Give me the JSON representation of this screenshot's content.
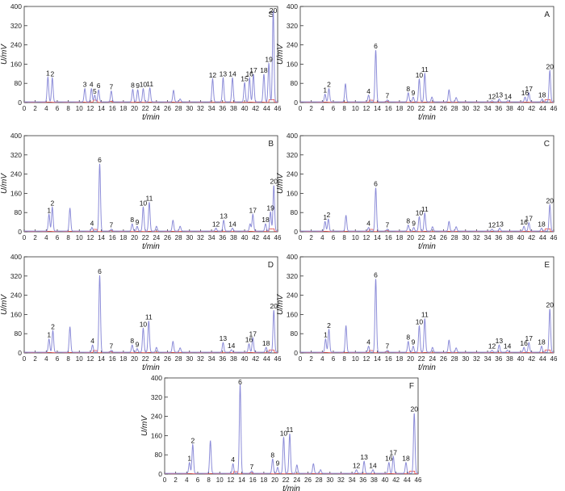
{
  "colors": {
    "sample": "#8c8cd8",
    "blank": "#e04848",
    "axis": "#333333"
  },
  "chart_data": [
    {
      "type": "line",
      "title": "",
      "panel_label": "S",
      "xlabel": "t/min",
      "ylabel": "U/mV",
      "xlim": [
        0,
        46
      ],
      "ylim": [
        0,
        400
      ],
      "xticks": [
        0,
        2,
        4,
        6,
        8,
        10,
        12,
        14,
        16,
        18,
        20,
        22,
        24,
        26,
        28,
        30,
        32,
        34,
        36,
        38,
        40,
        42,
        44,
        46
      ],
      "yticks": [
        0,
        80,
        160,
        240,
        320,
        400
      ],
      "peaks": [
        {
          "label": "1",
          "t": 4.3,
          "height": 103
        },
        {
          "label": "2",
          "t": 5.1,
          "height": 100
        },
        {
          "label": "3",
          "t": 11.0,
          "height": 55
        },
        {
          "label": "4",
          "t": 12.2,
          "height": 55
        },
        {
          "label": "5",
          "t": 12.8,
          "height": 28
        },
        {
          "label": "6",
          "t": 13.5,
          "height": 50
        },
        {
          "label": "7",
          "t": 15.8,
          "height": 45
        },
        {
          "label": "8",
          "t": 19.7,
          "height": 52
        },
        {
          "label": "9",
          "t": 20.6,
          "height": 50
        },
        {
          "label": "10",
          "t": 21.6,
          "height": 55
        },
        {
          "label": "11",
          "t": 22.8,
          "height": 58
        },
        {
          "label": "12",
          "t": 34.2,
          "height": 95
        },
        {
          "label": "13",
          "t": 36.1,
          "height": 100
        },
        {
          "label": "14",
          "t": 37.8,
          "height": 100
        },
        {
          "label": "15",
          "t": 40.0,
          "height": 80
        },
        {
          "label": "16",
          "t": 40.9,
          "height": 100
        },
        {
          "label": "17",
          "t": 41.6,
          "height": 115
        },
        {
          "label": "18",
          "t": 43.5,
          "height": 115
        },
        {
          "label": "19",
          "t": 44.4,
          "height": 160
        },
        {
          "label": "20",
          "t": 45.2,
          "height": 380
        }
      ],
      "unlabeled_peaks": [
        {
          "t": 27.1,
          "height": 48
        },
        {
          "t": 28.3,
          "height": 12
        }
      ]
    },
    {
      "type": "line",
      "title": "",
      "panel_label": "A",
      "xlabel": "t/min",
      "ylabel": "U/mV",
      "xlim": [
        0,
        46
      ],
      "ylim": [
        0,
        400
      ],
      "xticks": [
        0,
        2,
        4,
        6,
        8,
        10,
        12,
        14,
        16,
        18,
        20,
        22,
        24,
        26,
        28,
        30,
        32,
        34,
        36,
        38,
        40,
        42,
        44,
        46
      ],
      "yticks": [
        0,
        80,
        160,
        240,
        320,
        400
      ],
      "peaks": [
        {
          "label": "1",
          "t": 4.5,
          "height": 32
        },
        {
          "label": "2",
          "t": 5.2,
          "height": 55
        },
        {
          "label": "4",
          "t": 12.4,
          "height": 28
        },
        {
          "label": "6",
          "t": 13.7,
          "height": 215
        },
        {
          "label": "7",
          "t": 15.8,
          "height": 8
        },
        {
          "label": "8",
          "t": 19.6,
          "height": 38
        },
        {
          "label": "9",
          "t": 20.5,
          "height": 20
        },
        {
          "label": "10",
          "t": 21.6,
          "height": 95
        },
        {
          "label": "11",
          "t": 22.6,
          "height": 118
        },
        {
          "label": "12",
          "t": 34.8,
          "height": 5
        },
        {
          "label": "13",
          "t": 36.1,
          "height": 12
        },
        {
          "label": "14",
          "t": 37.7,
          "height": 5
        },
        {
          "label": "16",
          "t": 40.8,
          "height": 20
        },
        {
          "label": "17",
          "t": 41.5,
          "height": 38
        },
        {
          "label": "18",
          "t": 43.9,
          "height": 12
        },
        {
          "label": "20",
          "t": 45.3,
          "height": 130
        }
      ],
      "unlabeled_peaks": [
        {
          "t": 8.2,
          "height": 75
        },
        {
          "t": 23.9,
          "height": 20
        },
        {
          "t": 27.0,
          "height": 50
        },
        {
          "t": 28.3,
          "height": 18
        }
      ]
    },
    {
      "type": "line",
      "title": "",
      "panel_label": "B",
      "xlabel": "t/min",
      "ylabel": "U/mV",
      "xlim": [
        0,
        46
      ],
      "ylim": [
        0,
        400
      ],
      "xticks": [
        0,
        2,
        4,
        6,
        8,
        10,
        12,
        14,
        16,
        18,
        20,
        22,
        24,
        26,
        28,
        30,
        32,
        34,
        36,
        38,
        40,
        42,
        44,
        46
      ],
      "yticks": [
        0,
        80,
        160,
        240,
        320,
        400
      ],
      "peaks": [
        {
          "label": "1",
          "t": 4.5,
          "height": 70
        },
        {
          "label": "2",
          "t": 5.1,
          "height": 100
        },
        {
          "label": "4",
          "t": 12.3,
          "height": 15
        },
        {
          "label": "6",
          "t": 13.7,
          "height": 280
        },
        {
          "label": "7",
          "t": 15.8,
          "height": 8
        },
        {
          "label": "8",
          "t": 19.6,
          "height": 30
        },
        {
          "label": "9",
          "t": 20.5,
          "height": 20
        },
        {
          "label": "10",
          "t": 21.6,
          "height": 100
        },
        {
          "label": "11",
          "t": 22.7,
          "height": 120
        },
        {
          "label": "12",
          "t": 34.8,
          "height": 12
        },
        {
          "label": "13",
          "t": 36.2,
          "height": 45
        },
        {
          "label": "14",
          "t": 37.8,
          "height": 12
        },
        {
          "label": "17",
          "t": 41.5,
          "height": 70
        },
        {
          "label": "18",
          "t": 43.8,
          "height": 30
        },
        {
          "label": "19",
          "t": 44.7,
          "height": 80
        },
        {
          "label": "20",
          "t": 45.3,
          "height": 190
        }
      ],
      "unlabeled_peaks": [
        {
          "t": 8.3,
          "height": 95
        },
        {
          "t": 24.0,
          "height": 20
        },
        {
          "t": 27.0,
          "height": 45
        },
        {
          "t": 28.3,
          "height": 20
        },
        {
          "t": 41.0,
          "height": 30
        }
      ]
    },
    {
      "type": "line",
      "title": "",
      "panel_label": "C",
      "xlabel": "t/min",
      "ylabel": "U/mV",
      "xlim": [
        0,
        46
      ],
      "ylim": [
        0,
        400
      ],
      "xticks": [
        0,
        2,
        4,
        6,
        8,
        10,
        12,
        14,
        16,
        18,
        20,
        22,
        24,
        26,
        28,
        30,
        32,
        34,
        36,
        38,
        40,
        42,
        44,
        46
      ],
      "yticks": [
        0,
        80,
        160,
        240,
        320,
        400
      ],
      "peaks": [
        {
          "label": "1",
          "t": 4.5,
          "height": 40
        },
        {
          "label": "2",
          "t": 5.1,
          "height": 50
        },
        {
          "label": "4",
          "t": 12.4,
          "height": 15
        },
        {
          "label": "6",
          "t": 13.7,
          "height": 180
        },
        {
          "label": "7",
          "t": 15.8,
          "height": 8
        },
        {
          "label": "8",
          "t": 19.6,
          "height": 25
        },
        {
          "label": "9",
          "t": 20.6,
          "height": 15
        },
        {
          "label": "10",
          "t": 21.6,
          "height": 60
        },
        {
          "label": "11",
          "t": 22.6,
          "height": 75
        },
        {
          "label": "12",
          "t": 34.8,
          "height": 8
        },
        {
          "label": "13",
          "t": 36.2,
          "height": 12
        },
        {
          "label": "16",
          "t": 40.6,
          "height": 20
        },
        {
          "label": "17",
          "t": 41.5,
          "height": 35
        },
        {
          "label": "18",
          "t": 43.8,
          "height": 12
        },
        {
          "label": "20",
          "t": 45.3,
          "height": 110
        }
      ],
      "unlabeled_peaks": [
        {
          "t": 8.3,
          "height": 65
        },
        {
          "t": 24.0,
          "height": 18
        },
        {
          "t": 27.0,
          "height": 40
        },
        {
          "t": 28.3,
          "height": 18
        }
      ]
    },
    {
      "type": "line",
      "title": "",
      "panel_label": "D",
      "xlabel": "t/min",
      "ylabel": "U/mV",
      "xlim": [
        0,
        46
      ],
      "ylim": [
        0,
        400
      ],
      "xticks": [
        0,
        2,
        4,
        6,
        8,
        10,
        12,
        14,
        16,
        18,
        20,
        22,
        24,
        26,
        28,
        30,
        32,
        34,
        36,
        38,
        40,
        42,
        44,
        46
      ],
      "yticks": [
        0,
        80,
        160,
        240,
        320,
        400
      ],
      "peaks": [
        {
          "label": "1",
          "t": 4.5,
          "height": 55
        },
        {
          "label": "2",
          "t": 5.2,
          "height": 90
        },
        {
          "label": "4",
          "t": 12.4,
          "height": 30
        },
        {
          "label": "6",
          "t": 13.7,
          "height": 320
        },
        {
          "label": "7",
          "t": 15.8,
          "height": 8
        },
        {
          "label": "8",
          "t": 19.6,
          "height": 30
        },
        {
          "label": "9",
          "t": 20.5,
          "height": 15
        },
        {
          "label": "10",
          "t": 21.6,
          "height": 100
        },
        {
          "label": "11",
          "t": 22.6,
          "height": 130
        },
        {
          "label": "13",
          "t": 36.1,
          "height": 40
        },
        {
          "label": "14",
          "t": 37.6,
          "height": 10
        },
        {
          "label": "16",
          "t": 40.8,
          "height": 35
        },
        {
          "label": "17",
          "t": 41.5,
          "height": 60
        },
        {
          "label": "18",
          "t": 43.9,
          "height": 20
        },
        {
          "label": "20",
          "t": 45.3,
          "height": 175
        }
      ],
      "unlabeled_peaks": [
        {
          "t": 8.3,
          "height": 105
        },
        {
          "t": 24.0,
          "height": 20
        },
        {
          "t": 27.0,
          "height": 45
        },
        {
          "t": 28.3,
          "height": 18
        }
      ]
    },
    {
      "type": "line",
      "title": "",
      "panel_label": "E",
      "xlabel": "t/min",
      "ylabel": "U/mV",
      "xlim": [
        0,
        46
      ],
      "ylim": [
        0,
        400
      ],
      "xticks": [
        0,
        2,
        4,
        6,
        8,
        10,
        12,
        14,
        16,
        18,
        20,
        22,
        24,
        26,
        28,
        30,
        32,
        34,
        36,
        38,
        40,
        42,
        44,
        46
      ],
      "yticks": [
        0,
        80,
        160,
        240,
        320,
        400
      ],
      "peaks": [
        {
          "label": "1",
          "t": 4.6,
          "height": 55
        },
        {
          "label": "2",
          "t": 5.2,
          "height": 95
        },
        {
          "label": "4",
          "t": 12.4,
          "height": 25
        },
        {
          "label": "6",
          "t": 13.7,
          "height": 305
        },
        {
          "label": "7",
          "t": 15.8,
          "height": 8
        },
        {
          "label": "8",
          "t": 19.6,
          "height": 45
        },
        {
          "label": "9",
          "t": 20.5,
          "height": 25
        },
        {
          "label": "10",
          "t": 21.6,
          "height": 110
        },
        {
          "label": "11",
          "t": 22.6,
          "height": 140
        },
        {
          "label": "12",
          "t": 34.8,
          "height": 8
        },
        {
          "label": "13",
          "t": 36.1,
          "height": 30
        },
        {
          "label": "14",
          "t": 37.6,
          "height": 8
        },
        {
          "label": "16",
          "t": 40.6,
          "height": 20
        },
        {
          "label": "17",
          "t": 41.5,
          "height": 40
        },
        {
          "label": "18",
          "t": 43.8,
          "height": 25
        },
        {
          "label": "20",
          "t": 45.3,
          "height": 180
        }
      ],
      "unlabeled_peaks": [
        {
          "t": 8.3,
          "height": 110
        },
        {
          "t": 24.0,
          "height": 20
        },
        {
          "t": 27.0,
          "height": 50
        },
        {
          "t": 28.3,
          "height": 18
        }
      ]
    },
    {
      "type": "line",
      "title": "",
      "panel_label": "F",
      "xlabel": "t/min",
      "ylabel": "U/mV",
      "xlim": [
        0,
        46
      ],
      "ylim": [
        0,
        400
      ],
      "xticks": [
        0,
        2,
        4,
        6,
        8,
        10,
        12,
        14,
        16,
        18,
        20,
        22,
        24,
        26,
        28,
        30,
        32,
        34,
        36,
        38,
        40,
        42,
        44,
        46
      ],
      "yticks": [
        0,
        80,
        160,
        240,
        320,
        400
      ],
      "peaks": [
        {
          "label": "1",
          "t": 4.5,
          "height": 45
        },
        {
          "label": "2",
          "t": 5.1,
          "height": 120
        },
        {
          "label": "4",
          "t": 12.4,
          "height": 40
        },
        {
          "label": "6",
          "t": 13.7,
          "height": 370
        },
        {
          "label": "7",
          "t": 15.8,
          "height": 10
        },
        {
          "label": "8",
          "t": 19.6,
          "height": 60
        },
        {
          "label": "9",
          "t": 20.5,
          "height": 25
        },
        {
          "label": "10",
          "t": 21.6,
          "height": 150
        },
        {
          "label": "11",
          "t": 22.7,
          "height": 165
        },
        {
          "label": "12",
          "t": 34.8,
          "height": 15
        },
        {
          "label": "13",
          "t": 36.2,
          "height": 50
        },
        {
          "label": "14",
          "t": 37.8,
          "height": 15
        },
        {
          "label": "16",
          "t": 40.7,
          "height": 45
        },
        {
          "label": "17",
          "t": 41.5,
          "height": 70
        },
        {
          "label": "18",
          "t": 43.8,
          "height": 45
        },
        {
          "label": "20",
          "t": 45.3,
          "height": 250
        }
      ],
      "unlabeled_peaks": [
        {
          "t": 8.3,
          "height": 135
        },
        {
          "t": 24.0,
          "height": 35
        },
        {
          "t": 27.0,
          "height": 40
        },
        {
          "t": 28.3,
          "height": 15
        }
      ]
    }
  ]
}
